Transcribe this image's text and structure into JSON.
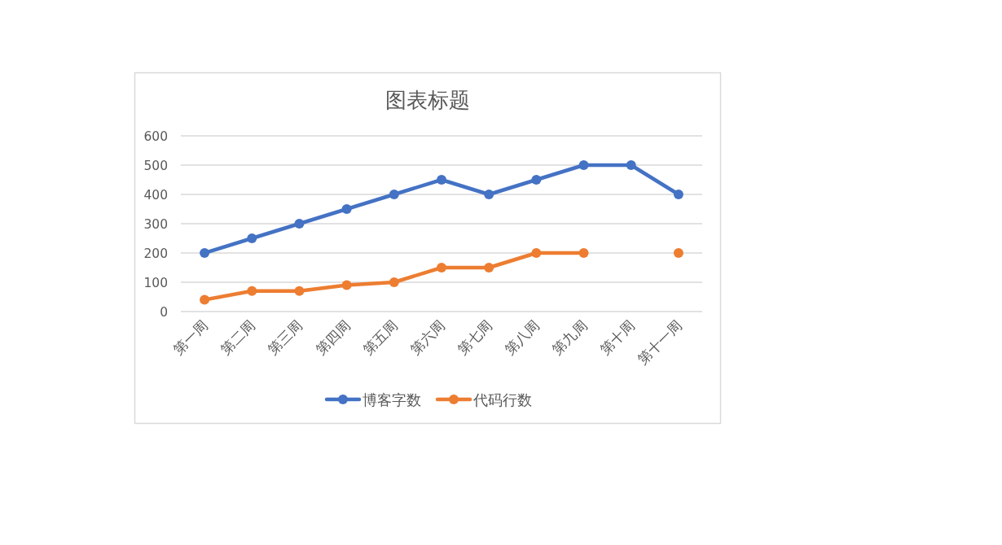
{
  "chart_data": {
    "type": "line",
    "title": "图表标题",
    "categories": [
      "第一周",
      "第二周",
      "第三周",
      "第四周",
      "第五周",
      "第六周",
      "第七周",
      "第八周",
      "第九周",
      "第十周",
      "第十一周"
    ],
    "series": [
      {
        "name": "博客字数",
        "color": "#4472c4",
        "values": [
          200,
          250,
          300,
          350,
          400,
          450,
          400,
          450,
          500,
          500,
          400
        ]
      },
      {
        "name": "代码行数",
        "color": "#ed7d31",
        "values": [
          40,
          70,
          70,
          90,
          100,
          150,
          150,
          200,
          200,
          null,
          200
        ]
      }
    ],
    "ylim": [
      0,
      600
    ],
    "yticks": [
      0,
      100,
      200,
      300,
      400,
      500,
      600
    ],
    "grid": "y",
    "legend": "bottom",
    "marker": "circle",
    "line_style": "solid"
  }
}
